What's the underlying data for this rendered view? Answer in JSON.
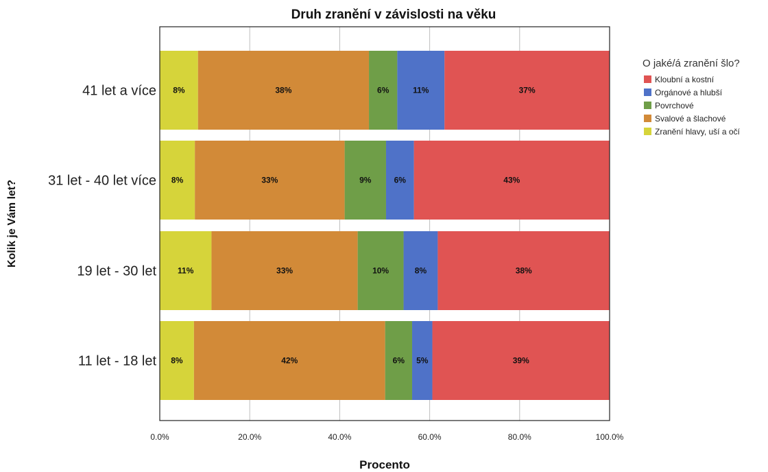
{
  "chart_data": {
    "type": "bar",
    "orientation": "horizontal",
    "stacked": true,
    "title": "Druh zranění v závislosti na věku",
    "xlabel": "Procento",
    "ylabel": "Kolik je Vám let?",
    "xlim": [
      0,
      100
    ],
    "x_ticks": [
      "0.0%",
      "20.0%",
      "40.0%",
      "60.0%",
      "80.0%",
      "100.0%"
    ],
    "grid": true,
    "legend_position": "right",
    "legend_title": "O jaké/á zranění šlo?",
    "categories": [
      "41 let a více",
      "31 let  - 40 let více",
      "19 let  -  30 let",
      "11 let - 18 let"
    ],
    "series": [
      {
        "name": "Zranění hlavy, uší a očí",
        "color": "#d6d43a",
        "values": [
          8.5,
          7.8,
          11.5,
          7.6
        ],
        "labels": [
          "8%",
          "8%",
          "11%",
          "8%"
        ]
      },
      {
        "name": "Svalové a šlachové",
        "color": "#d28a38",
        "values": [
          38,
          33.3,
          32.5,
          42.5
        ],
        "labels": [
          "38%",
          "33%",
          "33%",
          "42%"
        ]
      },
      {
        "name": "Povrchové",
        "color": "#6f9e48",
        "values": [
          6.3,
          9.2,
          10.2,
          6
        ],
        "labels": [
          "6%",
          "9%",
          "10%",
          "6%"
        ]
      },
      {
        "name": "Orgánové a hlubší",
        "color": "#4f72c8",
        "values": [
          10.5,
          6.2,
          7.6,
          4.5
        ],
        "labels": [
          "11%",
          "6%",
          "8%",
          "5%"
        ]
      },
      {
        "name": "Kloubní a kostní",
        "color": "#e05453",
        "values": [
          36.7,
          43.5,
          38.2,
          39.4
        ],
        "labels": [
          "37%",
          "43%",
          "38%",
          "39%"
        ]
      }
    ],
    "legend_order": [
      "Kloubní a kostní",
      "Orgánové a hlubší",
      "Povrchové",
      "Svalové a šlachové",
      "Zranění hlavy, uší a očí"
    ]
  }
}
